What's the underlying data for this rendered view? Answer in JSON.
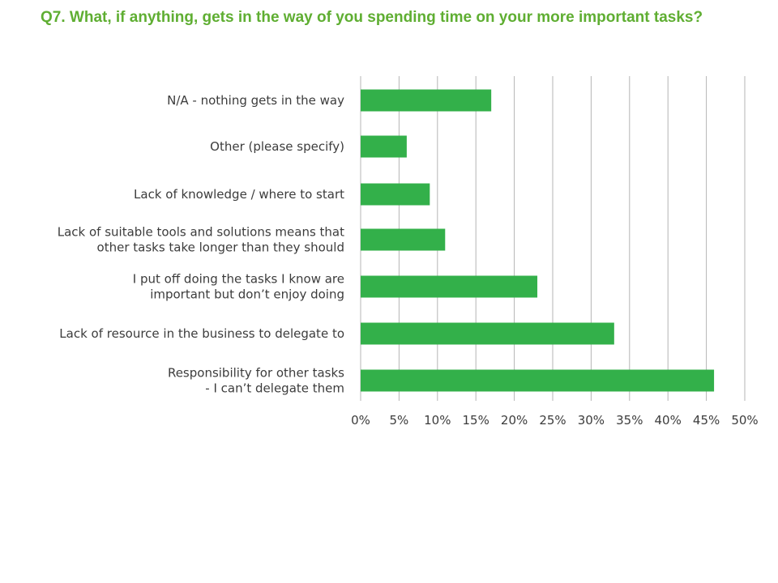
{
  "title": "Q7. What, if anything, gets in the way of you spending time on your more important tasks?",
  "colors": {
    "title": "#5fae32",
    "bar": "#33b04a",
    "grid": "#b5b5b5",
    "text": "#3c3c3c"
  },
  "chart_data": {
    "type": "bar",
    "orientation": "horizontal",
    "categories": [
      [
        "N/A - nothing gets in the way"
      ],
      [
        "Other (please specify)"
      ],
      [
        "Lack of knowledge / where to start"
      ],
      [
        "Lack of suitable tools and solutions means that",
        "other tasks take longer than they should"
      ],
      [
        "I put off doing the tasks I know are",
        "important but don’t enjoy doing"
      ],
      [
        "Lack of resource in the business to delegate to"
      ],
      [
        "Responsibility for other tasks",
        "- I can’t delegate them"
      ]
    ],
    "values": [
      17,
      6,
      9,
      11,
      23,
      33,
      46
    ],
    "xlim": [
      0,
      50
    ],
    "xticks": [
      "0%",
      "5%",
      "10%",
      "15%",
      "20%",
      "25%",
      "30%",
      "35%",
      "40%",
      "45%",
      "50%"
    ],
    "grid": true,
    "legend": "none"
  }
}
